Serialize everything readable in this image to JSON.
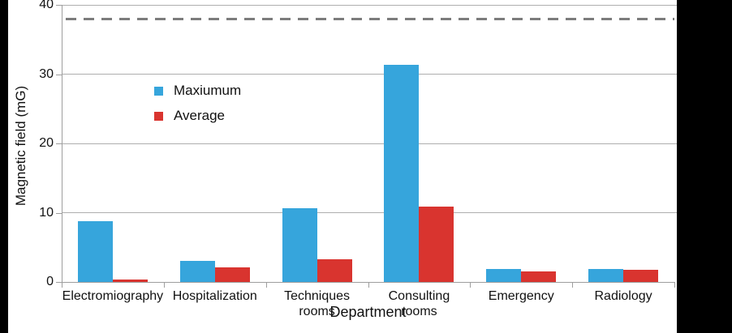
{
  "frame": {
    "background": "#ffffff",
    "left_bar_color": "#000000",
    "right_bar_color": "#000000"
  },
  "chart_data": {
    "type": "bar",
    "title": "",
    "xlabel": "Department",
    "ylabel": "Magnetic field (mG)",
    "ylim": [
      0,
      40
    ],
    "yticks": [
      0,
      10,
      20,
      30,
      40
    ],
    "grid": true,
    "gridline_color": "#aeaeae",
    "axis_color": "#9e9e9e",
    "text_color": "#111111",
    "legend_position": "upper-left-inside",
    "categories": [
      "Electromiography",
      "Hospitalization",
      "Techniques\nrooms",
      "Consulting\nrooms",
      "Emergency",
      "Radiology"
    ],
    "series": [
      {
        "name": "Maxiumum",
        "color": "#36A5DC",
        "values": [
          8.8,
          3.0,
          10.6,
          31.3,
          1.9,
          1.9
        ]
      },
      {
        "name": "Average",
        "color": "#D9342F",
        "values": [
          0.3,
          2.1,
          3.3,
          10.9,
          1.5,
          1.7
        ]
      }
    ],
    "reference_line": {
      "value": 38,
      "style": "dashed",
      "color": "#7c7c7c"
    }
  }
}
